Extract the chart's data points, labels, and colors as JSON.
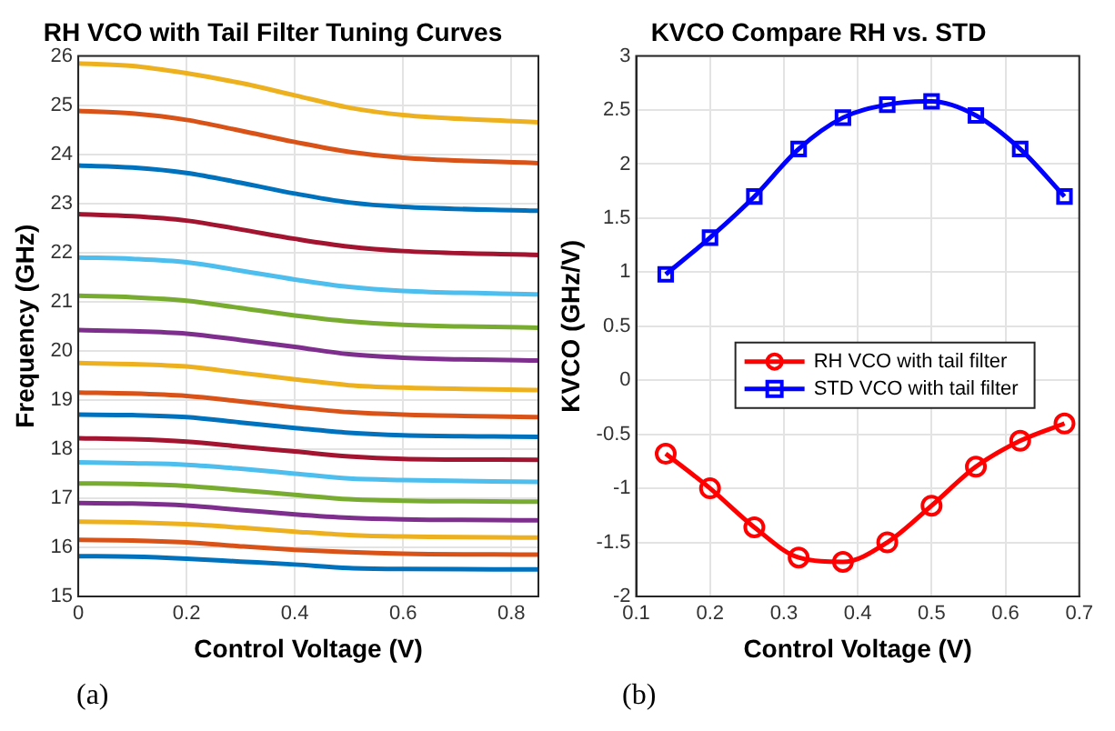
{
  "chart_data": [
    {
      "type": "line",
      "title": "RH VCO with Tail Filter Tuning Curves",
      "xlabel": "Control Voltage (V)",
      "ylabel": "Frequency (GHz)",
      "x": [
        0,
        0.1,
        0.2,
        0.3,
        0.4,
        0.5,
        0.6,
        0.85
      ],
      "xlim": [
        0,
        0.85
      ],
      "xticks": [
        0,
        0.2,
        0.4,
        0.6,
        0.8
      ],
      "ylim": [
        15,
        26
      ],
      "yticks": [
        15,
        16,
        17,
        18,
        19,
        20,
        21,
        22,
        23,
        24,
        25,
        26
      ],
      "grid": true,
      "legend": false,
      "marker": "none",
      "line_style": "solid",
      "annotations": [
        "(a)"
      ],
      "series": [
        {
          "color": "#edb120",
          "values": [
            25.85,
            25.8,
            25.65,
            25.45,
            25.2,
            24.95,
            24.8,
            24.65
          ]
        },
        {
          "color": "#d95319",
          "values": [
            24.88,
            24.83,
            24.7,
            24.48,
            24.25,
            24.05,
            23.93,
            23.82
          ]
        },
        {
          "color": "#0072bd",
          "values": [
            23.77,
            23.73,
            23.62,
            23.42,
            23.2,
            23.02,
            22.93,
            22.85
          ]
        },
        {
          "color": "#a2142f",
          "values": [
            22.78,
            22.74,
            22.65,
            22.47,
            22.28,
            22.12,
            22.03,
            21.95
          ]
        },
        {
          "color": "#4dbeee",
          "values": [
            21.9,
            21.87,
            21.8,
            21.63,
            21.45,
            21.3,
            21.22,
            21.15
          ]
        },
        {
          "color": "#77ac30",
          "values": [
            21.12,
            21.09,
            21.02,
            20.87,
            20.72,
            20.6,
            20.53,
            20.47
          ]
        },
        {
          "color": "#7e2f8e",
          "values": [
            20.42,
            20.4,
            20.35,
            20.22,
            20.08,
            19.93,
            19.86,
            19.8
          ]
        },
        {
          "color": "#edb120",
          "values": [
            19.75,
            19.73,
            19.68,
            19.55,
            19.42,
            19.3,
            19.25,
            19.2
          ]
        },
        {
          "color": "#d95319",
          "values": [
            19.15,
            19.13,
            19.08,
            18.97,
            18.85,
            18.75,
            18.7,
            18.65
          ]
        },
        {
          "color": "#0072bd",
          "values": [
            18.7,
            18.69,
            18.65,
            18.54,
            18.43,
            18.33,
            18.28,
            18.25
          ]
        },
        {
          "color": "#a2142f",
          "values": [
            18.22,
            18.2,
            18.15,
            18.05,
            17.95,
            17.85,
            17.8,
            17.78
          ]
        },
        {
          "color": "#4dbeee",
          "values": [
            17.73,
            17.71,
            17.68,
            17.6,
            17.5,
            17.4,
            17.37,
            17.33
          ]
        },
        {
          "color": "#77ac30",
          "values": [
            17.3,
            17.29,
            17.25,
            17.16,
            17.07,
            16.98,
            16.95,
            16.93
          ]
        },
        {
          "color": "#7e2f8e",
          "values": [
            16.9,
            16.89,
            16.85,
            16.76,
            16.67,
            16.6,
            16.57,
            16.55
          ]
        },
        {
          "color": "#edb120",
          "values": [
            16.52,
            16.51,
            16.47,
            16.4,
            16.32,
            16.25,
            16.22,
            16.2
          ]
        },
        {
          "color": "#d95319",
          "values": [
            16.15,
            16.14,
            16.1,
            16.02,
            15.95,
            15.9,
            15.87,
            15.85
          ]
        },
        {
          "color": "#0072bd",
          "values": [
            15.82,
            15.81,
            15.77,
            15.71,
            15.65,
            15.58,
            15.56,
            15.55
          ]
        }
      ]
    },
    {
      "type": "line",
      "title": "KVCO Compare RH vs. STD",
      "xlabel": "Control Voltage (V)",
      "ylabel": "KVCO (GHz/V)",
      "x": [
        0.14,
        0.2,
        0.26,
        0.32,
        0.38,
        0.44,
        0.5,
        0.56,
        0.62,
        0.68
      ],
      "xlim": [
        0.1,
        0.7
      ],
      "xticks": [
        0.1,
        0.2,
        0.3,
        0.4,
        0.5,
        0.6,
        0.7
      ],
      "ylim": [
        -2,
        3
      ],
      "yticks": [
        -2,
        -1.5,
        -1,
        -0.5,
        0,
        0.5,
        1,
        1.5,
        2,
        2.5,
        3
      ],
      "grid": true,
      "legend": "center",
      "line_style": "solid",
      "annotations": [
        "(b)"
      ],
      "series": [
        {
          "name": "RH VCO with tail filter",
          "color": "#ff0000",
          "marker": "circle",
          "values": [
            -0.68,
            -1.0,
            -1.36,
            -1.64,
            -1.68,
            -1.5,
            -1.16,
            -0.8,
            -0.56,
            -0.4
          ]
        },
        {
          "name": "STD VCO with tail filter",
          "color": "#0000ff",
          "marker": "square",
          "values": [
            0.98,
            1.32,
            1.7,
            2.14,
            2.43,
            2.55,
            2.58,
            2.45,
            2.14,
            1.7
          ]
        }
      ]
    }
  ]
}
